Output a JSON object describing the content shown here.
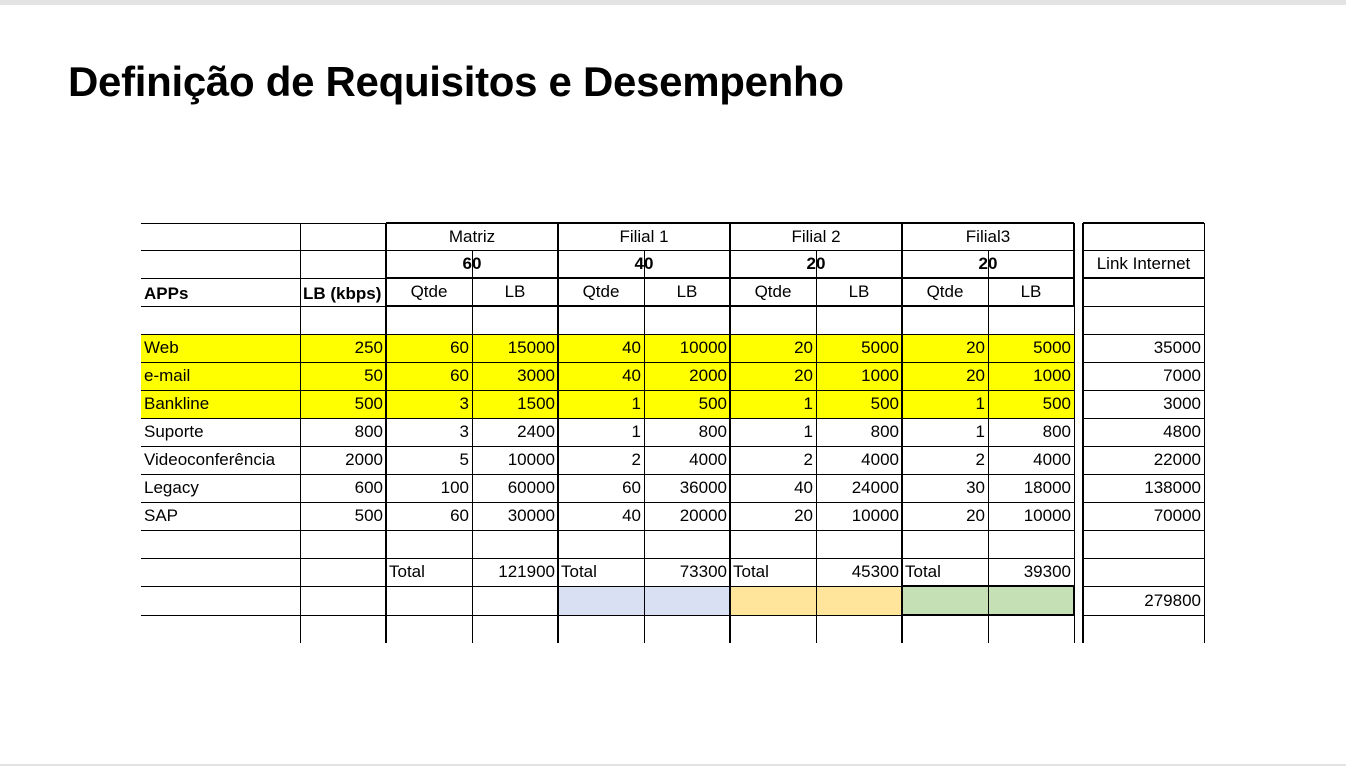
{
  "title": "Definição de Requisitos e Desempenho",
  "table": {
    "groups": [
      {
        "name": "Matriz",
        "count": "60"
      },
      {
        "name": "Filial 1",
        "count": "40"
      },
      {
        "name": "Filial 2",
        "count": "20"
      },
      {
        "name": "Filial3",
        "count": "20"
      }
    ],
    "link_header": "Link Internet",
    "apps_header": "APPs",
    "lb_header": "LB (kbps)",
    "qtde_header": "Qtde",
    "sub_lb_header": "LB",
    "rows": [
      {
        "app": "Web",
        "lb": "250",
        "highlight": true,
        "values": [
          "60",
          "15000",
          "40",
          "10000",
          "20",
          "5000",
          "20",
          "5000"
        ],
        "link": "35000"
      },
      {
        "app": "e-mail",
        "lb": "50",
        "highlight": true,
        "values": [
          "60",
          "3000",
          "40",
          "2000",
          "20",
          "1000",
          "20",
          "1000"
        ],
        "link": "7000"
      },
      {
        "app": "Bankline",
        "lb": "500",
        "highlight": true,
        "values": [
          "3",
          "1500",
          "1",
          "500",
          "1",
          "500",
          "1",
          "500"
        ],
        "link": "3000"
      },
      {
        "app": "Suporte",
        "lb": "800",
        "highlight": false,
        "values": [
          "3",
          "2400",
          "1",
          "800",
          "1",
          "800",
          "1",
          "800"
        ],
        "link": "4800"
      },
      {
        "app": "Videoconferência",
        "lb": "2000",
        "highlight": false,
        "values": [
          "5",
          "10000",
          "2",
          "4000",
          "2",
          "4000",
          "2",
          "4000"
        ],
        "link": "22000"
      },
      {
        "app": "Legacy",
        "lb": "600",
        "highlight": false,
        "values": [
          "100",
          "60000",
          "60",
          "36000",
          "40",
          "24000",
          "30",
          "18000"
        ],
        "link": "138000"
      },
      {
        "app": "SAP",
        "lb": "500",
        "highlight": false,
        "values": [
          "60",
          "30000",
          "40",
          "20000",
          "20",
          "10000",
          "20",
          "10000"
        ],
        "link": "70000"
      }
    ],
    "total_label": "Total",
    "totals": [
      "121900",
      "73300",
      "45300",
      "39300"
    ],
    "grand_total": "279800",
    "colors": {
      "highlight": "#ffff00",
      "filial1_swatch": "#d9e0f3",
      "filial2_swatch": "#ffe49b",
      "filial3_swatch": "#c5e0b4"
    }
  }
}
